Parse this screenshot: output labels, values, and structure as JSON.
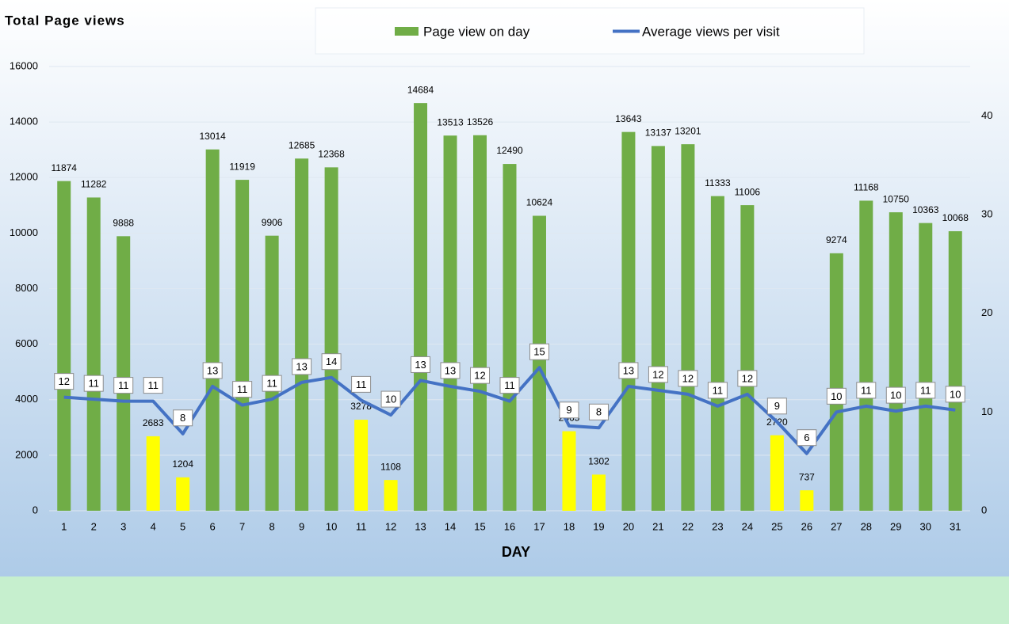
{
  "chart_data": {
    "type": "combo",
    "title": "Total Page views",
    "x_label": "DAY",
    "categories": [
      "1",
      "2",
      "3",
      "4",
      "5",
      "6",
      "7",
      "8",
      "9",
      "10",
      "11",
      "12",
      "13",
      "14",
      "15",
      "16",
      "17",
      "18",
      "19",
      "20",
      "21",
      "22",
      "23",
      "24",
      "25",
      "26",
      "27",
      "28",
      "29",
      "30",
      "31"
    ],
    "ylim": [
      0,
      16000
    ],
    "yticks": [
      0,
      2000,
      4000,
      6000,
      8000,
      10000,
      12000,
      14000,
      16000
    ],
    "y2lim": [
      0,
      45
    ],
    "y2ticks": [
      0,
      10,
      20,
      30,
      40
    ],
    "grid": true,
    "legend": "top",
    "series": [
      {
        "name": "Page view on day",
        "type": "bar",
        "color": "#70ad47",
        "colors": [
          "#70ad47",
          "#70ad47",
          "#70ad47",
          "#ffff00",
          "#ffff00",
          "#70ad47",
          "#70ad47",
          "#70ad47",
          "#70ad47",
          "#70ad47",
          "#ffff00",
          "#ffff00",
          "#70ad47",
          "#70ad47",
          "#70ad47",
          "#70ad47",
          "#70ad47",
          "#ffff00",
          "#ffff00",
          "#70ad47",
          "#70ad47",
          "#70ad47",
          "#70ad47",
          "#70ad47",
          "#ffff00",
          "#ffff00",
          "#70ad47",
          "#70ad47",
          "#70ad47",
          "#70ad47",
          "#70ad47"
        ],
        "values": [
          11874,
          11282,
          9888,
          2683,
          1204,
          13014,
          11919,
          9906,
          12685,
          12368,
          3278,
          1108,
          14684,
          13513,
          13526,
          12490,
          10624,
          2865,
          1302,
          13643,
          13137,
          13201,
          11333,
          11006,
          2720,
          737,
          9274,
          11168,
          10750,
          10363,
          10068
        ]
      },
      {
        "name": "Average views per visit",
        "type": "line",
        "axis": "y2",
        "color": "#4472c4",
        "values": [
          11.5,
          11.3,
          11.1,
          11.1,
          7.8,
          12.6,
          10.7,
          11.3,
          13.0,
          13.5,
          11.2,
          9.7,
          13.2,
          12.6,
          12.1,
          11.1,
          14.5,
          8.6,
          8.4,
          12.6,
          12.2,
          11.8,
          10.6,
          11.8,
          9.0,
          5.8,
          10.0,
          10.6,
          10.1,
          10.6,
          10.2
        ],
        "value_labels": [
          "12",
          "11",
          "11",
          "11",
          "8",
          "13",
          "11",
          "11",
          "13",
          "14",
          "11",
          "10",
          "13",
          "13",
          "12",
          "11",
          "15",
          "9",
          "8",
          "13",
          "12",
          "12",
          "11",
          "12",
          "9",
          "6",
          "10",
          "11",
          "10",
          "11",
          "10"
        ]
      }
    ]
  }
}
